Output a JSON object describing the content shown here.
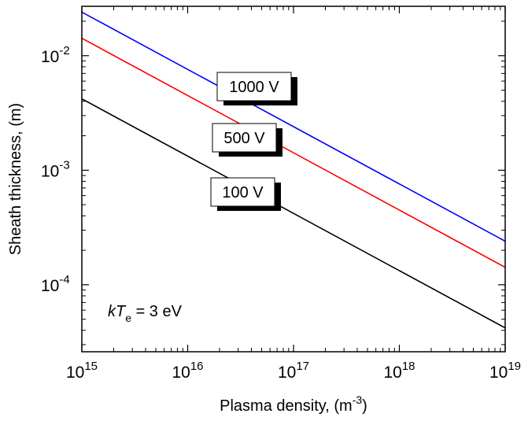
{
  "chart_data": {
    "type": "line",
    "xlabel": {
      "text": "Plasma density, (m",
      "sup": "-3",
      "suffix": ")"
    },
    "ylabel": "Sheath thickness, (m)",
    "x_scale": "log",
    "y_scale": "log",
    "xlim": [
      1000000000000000.0,
      1e+19
    ],
    "ylim": [
      2.6e-05,
      0.027
    ],
    "grid": false,
    "legend": "none",
    "x_ticks": [
      {
        "value": 1000000000000000.0,
        "base": "10",
        "exp": "15"
      },
      {
        "value": 1e+16,
        "base": "10",
        "exp": "16"
      },
      {
        "value": 1e+17,
        "base": "10",
        "exp": "17"
      },
      {
        "value": 1e+18,
        "base": "10",
        "exp": "18"
      },
      {
        "value": 1e+19,
        "base": "10",
        "exp": "19"
      }
    ],
    "y_ticks": [
      {
        "value": 0.0001,
        "base": "10",
        "exp": "-4"
      },
      {
        "value": 0.001,
        "base": "10",
        "exp": "-3"
      },
      {
        "value": 0.01,
        "base": "10",
        "exp": "-2"
      }
    ],
    "series": [
      {
        "name": "1000 V",
        "color": "#0000ff",
        "x": [
          1000000000000000.0,
          1e+19
        ],
        "y": [
          0.024,
          0.00024
        ]
      },
      {
        "name": "500 V",
        "color": "#ff0000",
        "x": [
          1000000000000000.0,
          1e+19
        ],
        "y": [
          0.0142,
          0.000142
        ]
      },
      {
        "name": "100 V",
        "color": "#000000",
        "x": [
          1000000000000000.0,
          1e+19
        ],
        "y": [
          0.0042,
          4.2e-05
        ]
      }
    ],
    "annotation": {
      "prefix": "k",
      "italic": "T",
      "sub": "e",
      "suffix": " = 3 eV"
    }
  }
}
